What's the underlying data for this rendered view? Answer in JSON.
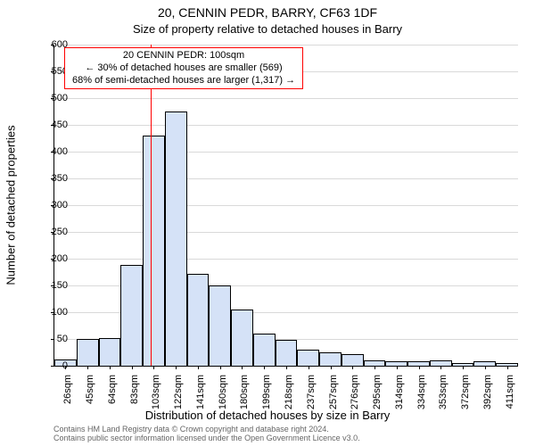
{
  "title": "20, CENNIN PEDR, BARRY, CF63 1DF",
  "subtitle": "Size of property relative to detached houses in Barry",
  "xlabel": "Distribution of detached houses by size in Barry",
  "ylabel": "Number of detached properties",
  "footer_line1": "Contains HM Land Registry data © Crown copyright and database right 2024.",
  "footer_line2": "Contains public sector information licensed under the Open Government Licence v3.0.",
  "annotation": {
    "line1": "20 CENNIN PEDR: 100sqm",
    "line2": "← 30% of detached houses are smaller (569)",
    "line3": "68% of semi-detached houses are larger (1,317) →"
  },
  "chart": {
    "type": "histogram",
    "y_max": 600,
    "y_tick_step": 50,
    "bar_fill": "#d5e2f7",
    "bar_border": "#000000",
    "marker_color": "#ff0000",
    "background": "#ffffff",
    "grid_color": "#000000",
    "grid_opacity": 0.15,
    "title_fontsize": 14,
    "subtitle_fontsize": 13,
    "label_fontsize": 13,
    "tick_fontsize": 11,
    "marker_x": 100,
    "bin_width_sqm": 19,
    "x_start_sqm": 17,
    "xticks": [
      "26sqm",
      "45sqm",
      "64sqm",
      "83sqm",
      "103sqm",
      "122sqm",
      "141sqm",
      "160sqm",
      "180sqm",
      "199sqm",
      "218sqm",
      "237sqm",
      "257sqm",
      "276sqm",
      "295sqm",
      "314sqm",
      "334sqm",
      "353sqm",
      "372sqm",
      "392sqm",
      "411sqm"
    ],
    "values": [
      12,
      50,
      52,
      188,
      430,
      475,
      172,
      150,
      105,
      60,
      48,
      30,
      25,
      22,
      10,
      8,
      8,
      10,
      5,
      8,
      5
    ]
  }
}
